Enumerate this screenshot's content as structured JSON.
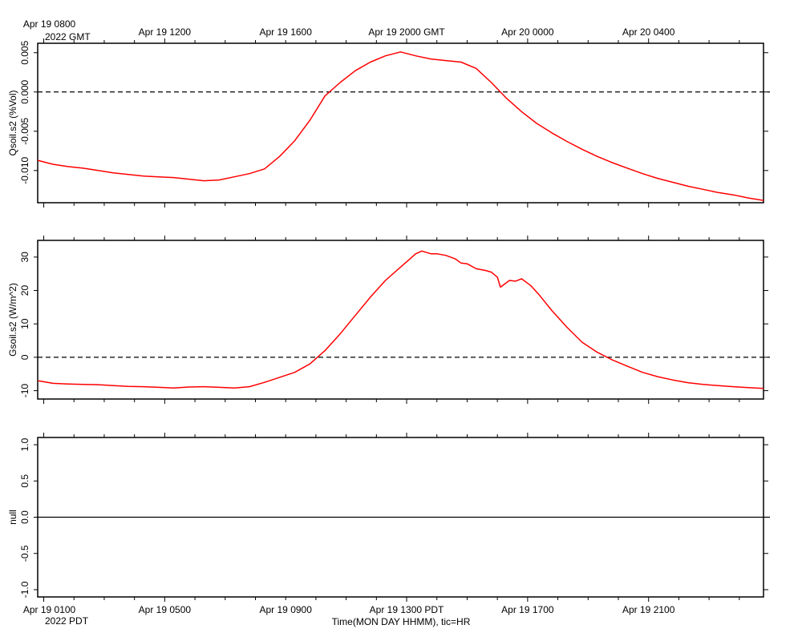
{
  "colors": {
    "series": "#ff0000",
    "frame": "#000000",
    "zero_line": "#000000",
    "background": "#ffffff"
  },
  "chart_data": [
    {
      "type": "line",
      "panel": "top",
      "ylabel": "Qsoil.s2 (%Vol)",
      "ylim": [
        -0.0141,
        0.0062
      ],
      "yticks": [
        0.005,
        0.0,
        -0.005,
        -0.01
      ],
      "ytick_labels": [
        "0.005",
        "0.000",
        "-0.005",
        "-0.010"
      ],
      "zero_line": {
        "value": 0,
        "style": "dashed"
      },
      "series": [
        {
          "x": [
            0,
            0.5,
            1,
            1.5,
            2,
            2.5,
            3,
            3.5,
            4,
            4.5,
            5,
            5.5,
            6,
            6.5,
            7,
            7.5,
            8,
            8.5,
            9,
            9.5,
            10,
            10.5,
            11,
            11.5,
            12,
            12.5,
            13,
            13.5,
            14,
            14.5,
            15,
            15.5,
            16,
            16.5,
            17,
            17.5,
            18,
            18.5,
            19,
            19.5,
            20,
            20.5,
            21,
            21.5,
            22,
            22.5,
            23,
            23.5,
            24
          ],
          "y": [
            -0.0087,
            -0.0092,
            -0.0095,
            -0.0097,
            -0.01,
            -0.0103,
            -0.0105,
            -0.0107,
            -0.0108,
            -0.0109,
            -0.0111,
            -0.0113,
            -0.0112,
            -0.0108,
            -0.0104,
            -0.0098,
            -0.0082,
            -0.0062,
            -0.0036,
            -0.0005,
            0.0012,
            0.0027,
            0.0038,
            0.0046,
            0.0051,
            0.0046,
            0.0042,
            0.004,
            0.0038,
            0.003,
            0.0012,
            -0.0008,
            -0.0025,
            -0.004,
            -0.0052,
            -0.0063,
            -0.0073,
            -0.0082,
            -0.009,
            -0.0097,
            -0.0104,
            -0.011,
            -0.0115,
            -0.012,
            -0.0124,
            -0.0128,
            -0.0131,
            -0.0135,
            -0.0138
          ]
        }
      ]
    },
    {
      "type": "line",
      "panel": "middle",
      "ylabel": "Gsoil.s2 (W/m^2)",
      "ylim": [
        -12.5,
        35
      ],
      "yticks": [
        30,
        20,
        10,
        0,
        -10
      ],
      "ytick_labels": [
        "30",
        "20",
        "10",
        "0",
        "-10"
      ],
      "zero_line": {
        "value": 0,
        "style": "dashed"
      },
      "series": [
        {
          "x": [
            0,
            0.5,
            1,
            1.5,
            2,
            2.5,
            3,
            3.5,
            4,
            4.5,
            5,
            5.5,
            6,
            6.5,
            7,
            7.5,
            8,
            8.5,
            9,
            9.5,
            10,
            10.5,
            11,
            11.5,
            12,
            12.5,
            12.7,
            13,
            13.2,
            13.5,
            13.8,
            14,
            14.2,
            14.5,
            14.8,
            15,
            15.2,
            15.3,
            15.6,
            15.8,
            16,
            16.3,
            16.6,
            17,
            17.5,
            18,
            18.5,
            19,
            19.5,
            20,
            20.5,
            21,
            21.5,
            22,
            22.5,
            23,
            23.5,
            24
          ],
          "y": [
            -7,
            -7.8,
            -8,
            -8.1,
            -8.2,
            -8.5,
            -8.7,
            -8.8,
            -9,
            -9.2,
            -8.9,
            -8.8,
            -9,
            -9.2,
            -8.8,
            -7.5,
            -6,
            -4.5,
            -2,
            2,
            7,
            12.5,
            18,
            23,
            27,
            31,
            31.8,
            31,
            31,
            30.5,
            29.5,
            28.2,
            28,
            26.5,
            26,
            25.5,
            24,
            21,
            23,
            22.8,
            23.5,
            21.5,
            18.5,
            14,
            9,
            4.5,
            1.5,
            -0.8,
            -2.7,
            -4.5,
            -5.8,
            -6.8,
            -7.6,
            -8.1,
            -8.5,
            -8.8,
            -9.1,
            -9.3
          ]
        }
      ]
    },
    {
      "type": "line",
      "panel": "bottom",
      "ylabel": "null",
      "ylim": [
        -1.1,
        1.1
      ],
      "yticks": [
        1.0,
        0.5,
        0.0,
        -0.5,
        -1.0
      ],
      "ytick_labels": [
        "1.0",
        "0.5",
        "0.0",
        "-0.5",
        "-1.0"
      ],
      "zero_line": {
        "value": 0,
        "style": "solid"
      },
      "series": []
    }
  ],
  "time_axis": {
    "x_start_hour": 0,
    "x_end_hour": 24,
    "gmt_label_year": "2022 GMT",
    "gmt_ticks": [
      {
        "hour": 0.2,
        "label": "Apr 19 0800"
      },
      {
        "hour": 4.2,
        "label": "Apr 19 1200"
      },
      {
        "hour": 8.2,
        "label": "Apr 19 1600"
      },
      {
        "hour": 12.2,
        "label": "Apr 19 2000 GMT"
      },
      {
        "hour": 16.2,
        "label": "Apr 20 0000"
      },
      {
        "hour": 20.2,
        "label": "Apr 20 0400"
      }
    ],
    "pdt_label_year": "2022 PDT",
    "pdt_ticks": [
      {
        "hour": 0.2,
        "label": "Apr 19 0100"
      },
      {
        "hour": 4.2,
        "label": "Apr 19 0500"
      },
      {
        "hour": 8.2,
        "label": "Apr 19 0900"
      },
      {
        "hour": 12.2,
        "label": "Apr 19 1300 PDT"
      },
      {
        "hour": 16.2,
        "label": "Apr 19 1700"
      },
      {
        "hour": 20.2,
        "label": "Apr 19 2100"
      }
    ],
    "xlabel": "Time(MON DAY HHMM), tic=HR"
  }
}
